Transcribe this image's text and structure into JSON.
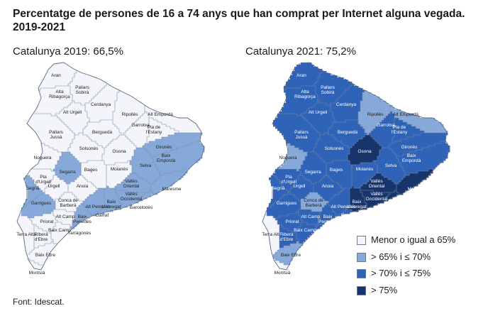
{
  "title": "Percentatge de persones de 16 a 74 anys que han comprat per Internet alguna vegada. 2019-2021",
  "maps": [
    {
      "title": "Catalunya 2019: 66,5%"
    },
    {
      "title": "Catalunya 2021: 75,2%"
    }
  ],
  "legend": [
    {
      "label": "Menor o igual a 65%",
      "color": "#f3f5fa"
    },
    {
      "label": "> 65% i ≤ 70%",
      "color": "#86a9d9"
    },
    {
      "label": "> 70% i ≤ 75%",
      "color": "#2f63b8"
    },
    {
      "label": "> 75%",
      "color": "#17356b"
    }
  ],
  "comarques": [
    {
      "name": "Aran",
      "c2019": 0,
      "c2021": 2
    },
    {
      "name": "Alta Ribagorça",
      "c2019": 0,
      "c2021": 2
    },
    {
      "name": "Pallars Sobirà",
      "c2019": 0,
      "c2021": 2
    },
    {
      "name": "Alt Urgell",
      "c2019": 0,
      "c2021": 2
    },
    {
      "name": "Cerdanya",
      "c2019": 0,
      "c2021": 2
    },
    {
      "name": "Ripollès",
      "c2019": 0,
      "c2021": 1
    },
    {
      "name": "Alt Empordà",
      "c2019": 0,
      "c2021": 1
    },
    {
      "name": "Pallars Jussà",
      "c2019": 0,
      "c2021": 2
    },
    {
      "name": "Berguedà",
      "c2019": 0,
      "c2021": 2
    },
    {
      "name": "Garrotxa",
      "c2019": 0,
      "c2021": 2
    },
    {
      "name": "Pla de l'Estany",
      "c2019": 0,
      "c2021": 2
    },
    {
      "name": "Solsonès",
      "c2019": 0,
      "c2021": 2
    },
    {
      "name": "Osona",
      "c2019": 0,
      "c2021": 3
    },
    {
      "name": "Gironès",
      "c2019": 1,
      "c2021": 2
    },
    {
      "name": "Baix Empordà",
      "c2019": 1,
      "c2021": 2
    },
    {
      "name": "Noguera",
      "c2019": 0,
      "c2021": 1
    },
    {
      "name": "Bages",
      "c2019": 0,
      "c2021": 2
    },
    {
      "name": "Moianès",
      "c2019": 0,
      "c2021": 2
    },
    {
      "name": "Selva",
      "c2019": 1,
      "c2021": 2
    },
    {
      "name": "Segrià",
      "c2019": 1,
      "c2021": 2
    },
    {
      "name": "Pla d'Urgell",
      "c2019": 0,
      "c2021": 2
    },
    {
      "name": "Segarra",
      "c2019": 1,
      "c2021": 2
    },
    {
      "name": "Urgell",
      "c2019": 0,
      "c2021": 2
    },
    {
      "name": "Anoia",
      "c2019": 0,
      "c2021": 2
    },
    {
      "name": "Vallès Oriental",
      "c2019": 1,
      "c2021": 3
    },
    {
      "name": "Vallès Occidental",
      "c2019": 1,
      "c2021": 3
    },
    {
      "name": "Maresme",
      "c2019": 1,
      "c2021": 3
    },
    {
      "name": "Garrigues",
      "c2019": 1,
      "c2021": 2
    },
    {
      "name": "Conca de Barberà",
      "c2019": 0,
      "c2021": 1
    },
    {
      "name": "Alt Penedès",
      "c2019": 1,
      "c2021": 2
    },
    {
      "name": "Barcelonès",
      "c2019": 1,
      "c2021": 3
    },
    {
      "name": "Alt Camp",
      "c2019": 0,
      "c2021": 2
    },
    {
      "name": "Baix Penedès",
      "c2019": 1,
      "c2021": 2
    },
    {
      "name": "Garraf",
      "c2019": 1,
      "c2021": 2
    },
    {
      "name": "Baix Llobregat",
      "c2019": 1,
      "c2021": 3
    },
    {
      "name": "Priorat",
      "c2019": 0,
      "c2021": 2
    },
    {
      "name": "Baix Camp",
      "c2019": 0,
      "c2021": 2
    },
    {
      "name": "Tarragonès",
      "c2019": 1,
      "c2021": 2
    },
    {
      "name": "Terra Alta",
      "c2019": 0,
      "c2021": 0
    },
    {
      "name": "Ribera d'Ebre",
      "c2019": 0,
      "c2021": 2
    },
    {
      "name": "Baix Ebre",
      "c2019": 0,
      "c2021": 1
    },
    {
      "name": "Montsià",
      "c2019": 0,
      "c2021": 0
    }
  ],
  "source": "Font: Idescat."
}
